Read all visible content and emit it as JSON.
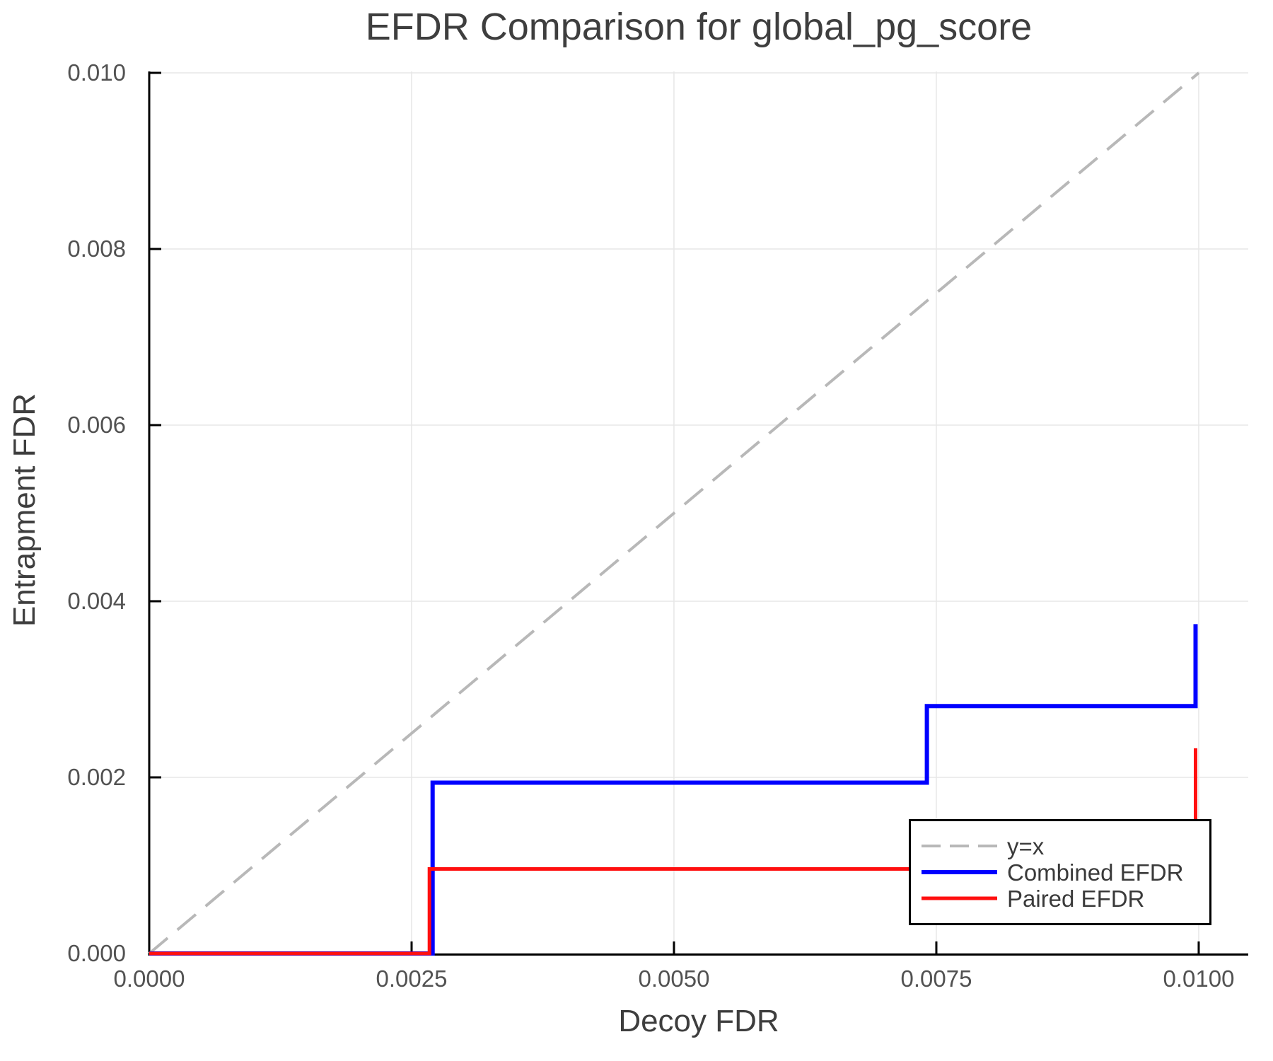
{
  "chart_data": {
    "type": "line",
    "title": "EFDR Comparison for global_pg_score",
    "xlabel": "Decoy FDR",
    "ylabel": "Entrapment FDR",
    "xlim": [
      0,
      0.010472
    ],
    "ylim": [
      0,
      0.010016
    ],
    "grid": true,
    "legend_position": "lower right",
    "x_ticks": {
      "values": [
        0,
        0.0025,
        0.005,
        0.0075,
        0.01
      ],
      "labels": [
        "0.0000",
        "0.0025",
        "0.0050",
        "0.0075",
        "0.0100"
      ]
    },
    "y_ticks": {
      "values": [
        0,
        0.002,
        0.004,
        0.006,
        0.008,
        0.01
      ],
      "labels": [
        "0.000",
        "0.002",
        "0.004",
        "0.006",
        "0.008",
        "0.010"
      ]
    },
    "series": [
      {
        "name": "y=x",
        "color": "#b8b8b8",
        "style": "dashed",
        "line_width": 4,
        "points": [
          [
            0,
            0
          ],
          [
            0.01,
            0.01
          ]
        ]
      },
      {
        "name": "Combined EFDR",
        "color": "#0000ff",
        "style": "solid",
        "line_width": 6,
        "points": [
          [
            0,
            0
          ],
          [
            0.0027,
            0
          ],
          [
            0.0027,
            0.00194
          ],
          [
            0.00741,
            0.00194
          ],
          [
            0.00741,
            0.00281
          ],
          [
            0.00997,
            0.00281
          ],
          [
            0.00997,
            0.00374
          ]
        ]
      },
      {
        "name": "Paired EFDR",
        "color": "#ff0f0f",
        "style": "solid",
        "line_width": 5,
        "points": [
          [
            0,
            0
          ],
          [
            0.00267,
            0
          ],
          [
            0.00267,
            0.00096
          ],
          [
            0.00997,
            0.00096
          ],
          [
            0.00997,
            0.00233
          ]
        ]
      }
    ],
    "style_colors": {
      "axis": "#000000",
      "grid": "#e7e7e7",
      "tick_labels": "#525252",
      "text": "#3e3e3e"
    }
  }
}
